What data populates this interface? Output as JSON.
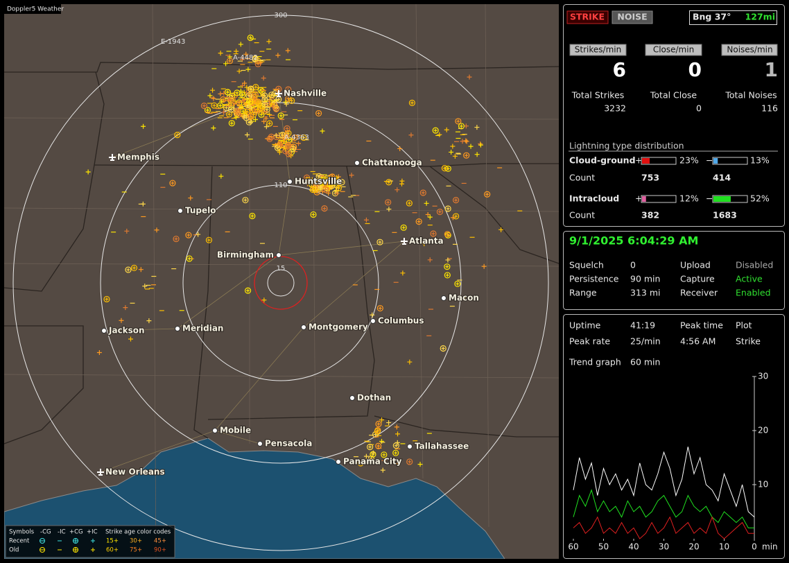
{
  "map": {
    "title": "Doppler5 Weather",
    "range_labels": [
      "300",
      "110",
      "15"
    ],
    "annotations": [
      "E-1943",
      "A-4482",
      "A-4363"
    ],
    "cities": [
      "Nashville",
      "Memphis",
      "Chattanooga",
      "Huntsville",
      "Tupelo",
      "Atlanta",
      "Birmingham",
      "Macon",
      "Jackson",
      "Meridian",
      "Montgomery",
      "Columbus",
      "Dothan",
      "Mobile",
      "Pensacola",
      "Tallahassee",
      "Panama City",
      "New Orleans"
    ]
  },
  "legend": {
    "symbols_label": "Symbols",
    "columns": [
      "-CG",
      "-IC",
      "+CG",
      "+IC"
    ],
    "age_label": "Strike age color codes",
    "rows": [
      {
        "label": "Recent",
        "ages": [
          "15+",
          "30+",
          "45+"
        ]
      },
      {
        "label": "Old",
        "ages": [
          "60+",
          "75+",
          "90+"
        ]
      }
    ]
  },
  "buttons": [
    "STRIKE",
    "NOISE"
  ],
  "bearing": "Bng 37°",
  "distance": "127mi",
  "rates": [
    {
      "label": "Strikes/min",
      "value": 6
    },
    {
      "label": "Close/min",
      "value": 0
    },
    {
      "label": "Noises/min",
      "value": 1
    }
  ],
  "totals": [
    {
      "label": "Total Strikes",
      "value": 3232
    },
    {
      "label": "Total Close",
      "value": 0
    },
    {
      "label": "Total Noises",
      "value": 116
    }
  ],
  "distribution": {
    "title": "Lightning type distribution",
    "count_label": "Count",
    "rows": [
      {
        "name": "Cloud-ground",
        "plus": {
          "value": 23,
          "label": "23%"
        },
        "minus": {
          "value": 13,
          "label": "13%"
        },
        "plus_count": 753,
        "minus_count": 414
      },
      {
        "name": "Intracloud",
        "plus": {
          "value": 12,
          "label": "12%"
        },
        "minus": {
          "value": 52,
          "label": "52%"
        },
        "plus_count": 382,
        "minus_count": 1683
      }
    ]
  },
  "datetime": "9/1/2025 6:04:29 AM",
  "settings": [
    [
      "Squelch",
      "0",
      "Upload",
      "Disabled"
    ],
    [
      "Persistence",
      "90 min",
      "Capture",
      "Active"
    ],
    [
      "Range",
      "313 mi",
      "Receiver",
      "Enabled"
    ]
  ],
  "stats": [
    [
      "Uptime",
      "41:19",
      "Peak time",
      "Plot"
    ],
    [
      "Peak rate",
      "25/min",
      "4:56 AM",
      "Strike"
    ],
    [
      "Trend graph",
      "60 min"
    ]
  ],
  "trend": {
    "x_unit": "min",
    "xlim": [
      60,
      0
    ],
    "ylim": [
      0,
      30
    ],
    "xticks": [
      60,
      50,
      40,
      30,
      20,
      10,
      0
    ],
    "yticks": [
      10,
      20,
      30
    ],
    "x": [
      60,
      58,
      56,
      54,
      52,
      50,
      48,
      46,
      44,
      42,
      40,
      38,
      36,
      34,
      32,
      30,
      28,
      26,
      24,
      22,
      20,
      18,
      16,
      14,
      12,
      10,
      8,
      6,
      4,
      2,
      0
    ],
    "series": [
      {
        "color": "#ffffff",
        "values": [
          9,
          15,
          11,
          14,
          8,
          13,
          10,
          12,
          9,
          11,
          8,
          14,
          10,
          9,
          12,
          16,
          13,
          8,
          11,
          17,
          12,
          15,
          10,
          9,
          7,
          12,
          9,
          6,
          10,
          5,
          4
        ]
      },
      {
        "color": "#20e020",
        "values": [
          4,
          8,
          6,
          9,
          5,
          7,
          5,
          6,
          4,
          7,
          5,
          6,
          4,
          5,
          7,
          8,
          6,
          4,
          5,
          8,
          6,
          5,
          6,
          4,
          3,
          5,
          4,
          3,
          4,
          2,
          2
        ]
      },
      {
        "color": "#e02020",
        "values": [
          2,
          3,
          1,
          2,
          4,
          1,
          2,
          1,
          3,
          1,
          2,
          0,
          1,
          3,
          1,
          2,
          4,
          1,
          2,
          3,
          1,
          2,
          1,
          4,
          1,
          0,
          1,
          2,
          3,
          1,
          1
        ]
      }
    ]
  }
}
